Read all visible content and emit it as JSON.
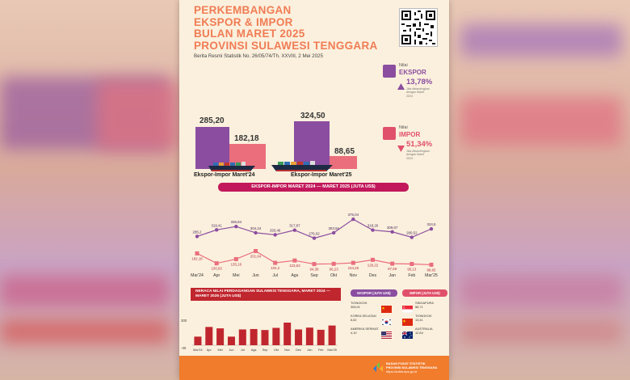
{
  "header": {
    "title_lines": [
      "PERKEMBANGAN",
      "EKSPOR & IMPOR",
      "BULAN MARET 2025",
      "PROVINSI SULAWESI TENGGARA"
    ],
    "subtitle": "Berita Resmi Statistik No. 26/05/74/Th. XXVIII, 2 Mei 2025"
  },
  "indicators": {
    "ekspor": {
      "prefix": "Nilai",
      "label": "EKSPOR",
      "value": "13,78%",
      "direction": "up",
      "note": "Jika dibandingkan dengan Maret 2024",
      "color": "#8b4da0"
    },
    "impor": {
      "prefix": "Nilai",
      "label": "IMPOR",
      "value": "51,34%",
      "direction": "down",
      "note": "Jika dibandingkan dengan Maret 2024",
      "color": "#e0506a"
    }
  },
  "comparison": {
    "groups": [
      {
        "label": "Ekspor-Impor Maret'24",
        "ekspor": "285,20",
        "impor": "182,18"
      },
      {
        "label": "Ekspor-Impor Maret'25",
        "ekspor": "324,50",
        "impor": "88,65"
      }
    ],
    "banner": "EKSPOR-IMPOR MARET 2024 — MARET 2025 (JUTA US$)"
  },
  "chart_data": [
    {
      "type": "line",
      "title": "EKSPOR-IMPOR MARET 2024 — MARET 2025 (JUTA US$)",
      "categories": [
        "Mar'24",
        "Apr",
        "Mei",
        "Jun",
        "Jul",
        "Ags",
        "Sep",
        "Okt",
        "Nov",
        "Des",
        "Jan",
        "Feb",
        "Mar'25"
      ],
      "series": [
        {
          "name": "Ekspor",
          "values": [
            285.2,
            319.41,
            336.84,
            304.24,
            293.46,
            317.87,
            276.02,
            303.94,
            375.04,
            318.26,
            309.07,
            280.52,
            324.5
          ],
          "labels": [
            "285,2",
            "319,41",
            "336,84",
            "304,24",
            "293,46",
            "317,87",
            "276,02",
            "303,94",
            "375,04",
            "318,26",
            "309,07",
            "280,52",
            "324,5"
          ]
        },
        {
          "name": "Impor",
          "values": [
            182.18,
            100.63,
            135.16,
            201.64,
            104.2,
            123.63,
            94.38,
            96.23,
            104.26,
            129.22,
            97.69,
            95.13,
            88.65
          ],
          "labels": [
            "182,18",
            "100,63",
            "135,16",
            "201,64",
            "104,2",
            "123,63",
            "94,38",
            "96,23",
            "104,26",
            "129,22",
            "97,69",
            "95,13",
            "88,65"
          ]
        }
      ]
    },
    {
      "type": "bar",
      "title": "NERACA NILAI PERDAGANGAN SULAWESI TENGGARA, MARET 2024 — MARET 2025 (JUTA US$)",
      "categories": [
        "Mar'24",
        "Apr",
        "Mei",
        "Jun",
        "Jul",
        "Ags",
        "Sep",
        "Okt",
        "Nov",
        "Des",
        "Jan",
        "Feb",
        "Mar'25"
      ],
      "values": [
        103,
        219,
        202,
        103,
        189,
        194,
        182,
        208,
        271,
        189,
        211,
        185,
        236
      ],
      "ylim": [
        -30,
        300
      ],
      "ytick_labels": [
        "300",
        "-30"
      ]
    }
  ],
  "partners": {
    "ekspor_title": "EKSPOR (JUTA US$)",
    "impor_title": "IMPOR (JUTA US$)",
    "ekspor": [
      {
        "name": "TIONGKOK",
        "value": "308,01",
        "flag": "cn"
      },
      {
        "name": "KOREA SELATAN",
        "value": "6,62",
        "flag": "kr"
      },
      {
        "name": "AMERIKA SERIKAT",
        "value": "4,10",
        "flag": "us"
      }
    ],
    "impor": [
      {
        "name": "SINGAPURA",
        "value": "58,71",
        "flag": "sg"
      },
      {
        "name": "TIONGKOK",
        "value": "13,41",
        "flag": "cn"
      },
      {
        "name": "AUSTRALIA",
        "value": "12,84",
        "flag": "au"
      }
    ]
  },
  "footer": {
    "org_lines": [
      "BADAN PUSAT STATISTIK",
      "PROVINSI SULAWESI TENGGARA"
    ],
    "url": "https://sultra.bps.go.id"
  },
  "colors": {
    "ekspor": "#8b4da0",
    "impor": "#ea6e7c",
    "title": "#f07c54",
    "banner": "#c2185b",
    "neraca": "#c0262e",
    "footer": "#f07c2c"
  }
}
